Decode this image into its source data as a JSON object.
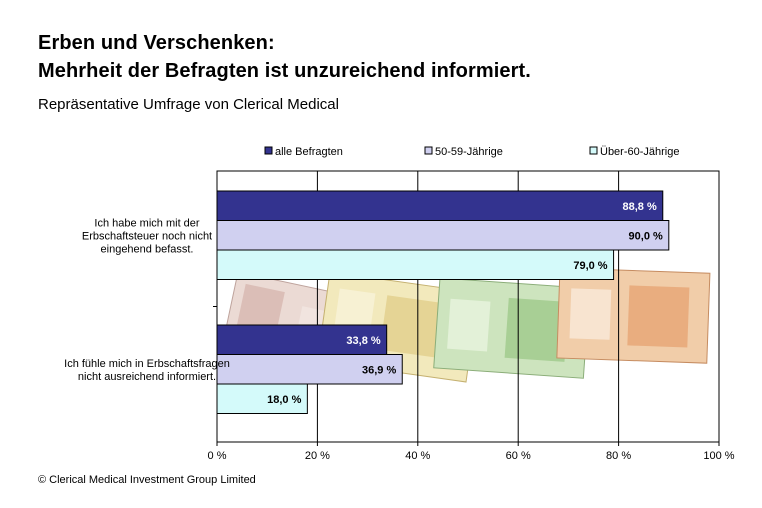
{
  "header": {
    "title_line1": "Erben und Verschenken:",
    "title_line2": "Mehrheit der Befragten ist unzureichend informiert.",
    "subtitle": "Repräsentative Umfrage von Clerical Medical"
  },
  "footer": {
    "copyright": "© Clerical Medical Investment Group Limited"
  },
  "chart_data": {
    "type": "bar",
    "orientation": "horizontal",
    "title": "",
    "xlabel": "",
    "ylabel": "",
    "xlim": [
      0,
      100
    ],
    "x_ticks": [
      "0 %",
      "20 %",
      "40 %",
      "60 %",
      "80 %",
      "100 %"
    ],
    "grid": true,
    "legend_position": "top",
    "categories": [
      [
        "Ich habe mich mit der",
        "Erbschaftsteuer noch nicht",
        "eingehend befasst."
      ],
      [
        "Ich fühle mich in Erbschaftsfragen",
        "nicht ausreichend informiert."
      ]
    ],
    "series": [
      {
        "name": "alle Befragten",
        "color": "#33338f",
        "values": [
          88.8,
          33.8
        ],
        "labels": [
          "88,8 %",
          "33,8 %"
        ]
      },
      {
        "name": "50-59-Jährige",
        "color": "#d0d0f0",
        "values": [
          90.0,
          36.9
        ],
        "labels": [
          "90,0 %",
          "36,9 %"
        ]
      },
      {
        "name": "Über-60-Jährige",
        "color": "#d4fafa",
        "values": [
          79.0,
          18.0
        ],
        "labels": [
          "79,0 %",
          "18,0 %"
        ]
      }
    ],
    "background_image": "euro-banknotes"
  }
}
